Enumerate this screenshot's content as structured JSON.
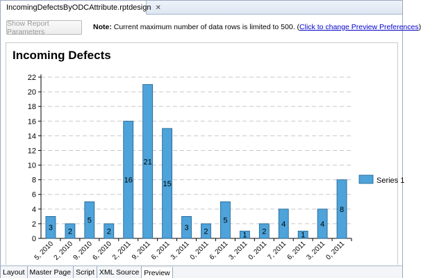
{
  "editor_tab": {
    "label": "IncomingDefectsByODCAttribute.rptdesign",
    "close_glyph": "✕"
  },
  "toolbar": {
    "params_button": "Show Report Parameters",
    "note_label": "Note:",
    "note_text": " Current maximum number of data rows is limited to 500. (",
    "note_link": "Click to change Preview Preferences",
    "note_end": ")"
  },
  "report": {
    "title": "Incoming Defects"
  },
  "bottom_tabs": [
    "Layout",
    "Master Page",
    "Script",
    "XML Source",
    "Preview"
  ],
  "active_bottom_tab": "Preview",
  "colors": {
    "bar_fill": "#4da3da",
    "bar_stroke": "#1f5f8c",
    "grid": "#c8c8c8"
  },
  "chart_data": {
    "type": "bar",
    "title": "Incoming Defects",
    "xlabel": "",
    "ylabel": "",
    "ylim": [
      0,
      22
    ],
    "yticks": [
      0,
      2,
      4,
      6,
      8,
      10,
      12,
      14,
      16,
      18,
      20,
      22
    ],
    "grid": true,
    "legend_position": "right",
    "categories": [
      "5, 2010",
      "2, 2010",
      "9, 2010",
      "6, 2010",
      "2, 2011",
      "9, 2011",
      "6, 2011",
      "3, 2011",
      "0, 2011",
      "6, 2011",
      "3, 2011",
      "0, 2011",
      "7, 2011",
      "6, 2011",
      "3, 2011",
      "0, 2011"
    ],
    "series": [
      {
        "name": "Series 1",
        "values": [
          3,
          2,
          5,
          2,
          16,
          21,
          15,
          3,
          2,
          5,
          1,
          2,
          4,
          1,
          4,
          8
        ]
      }
    ]
  }
}
